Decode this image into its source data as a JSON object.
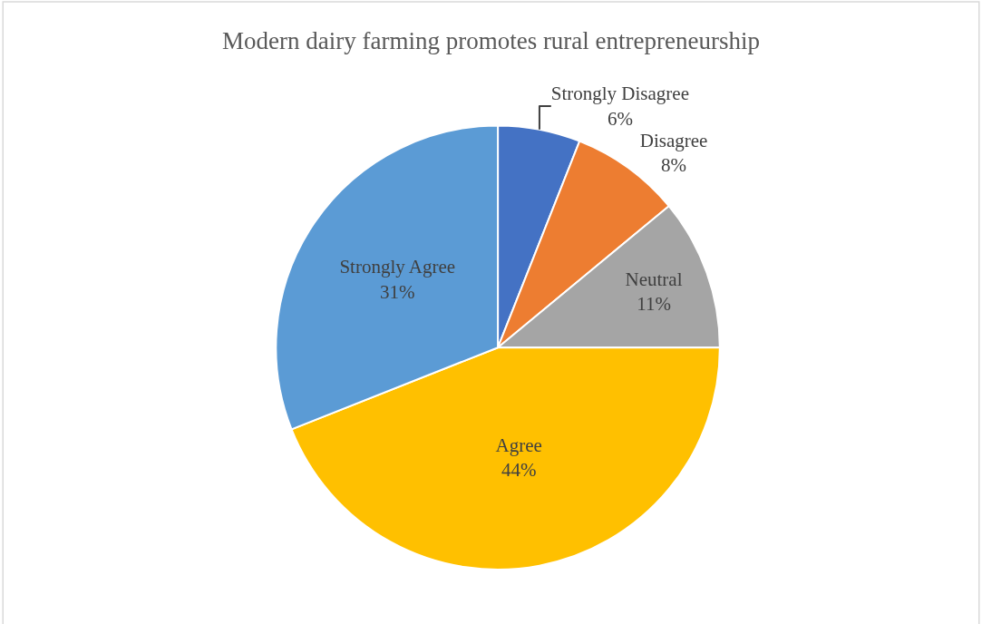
{
  "chart_data": {
    "type": "pie",
    "title": "Modern dairy farming promotes rural entrepreneurship",
    "categories": [
      "Strongly Disagree",
      "Disagree",
      "Neutral",
      "Agree",
      "Strongly Agree"
    ],
    "values": [
      6,
      8,
      11,
      44,
      31
    ],
    "value_labels": [
      "6%",
      "8%",
      "11%",
      "44%",
      "31%"
    ],
    "colors": [
      "#4472c4",
      "#ed7d31",
      "#a5a5a5",
      "#ffc000",
      "#5b9bd5"
    ],
    "legend": false
  }
}
